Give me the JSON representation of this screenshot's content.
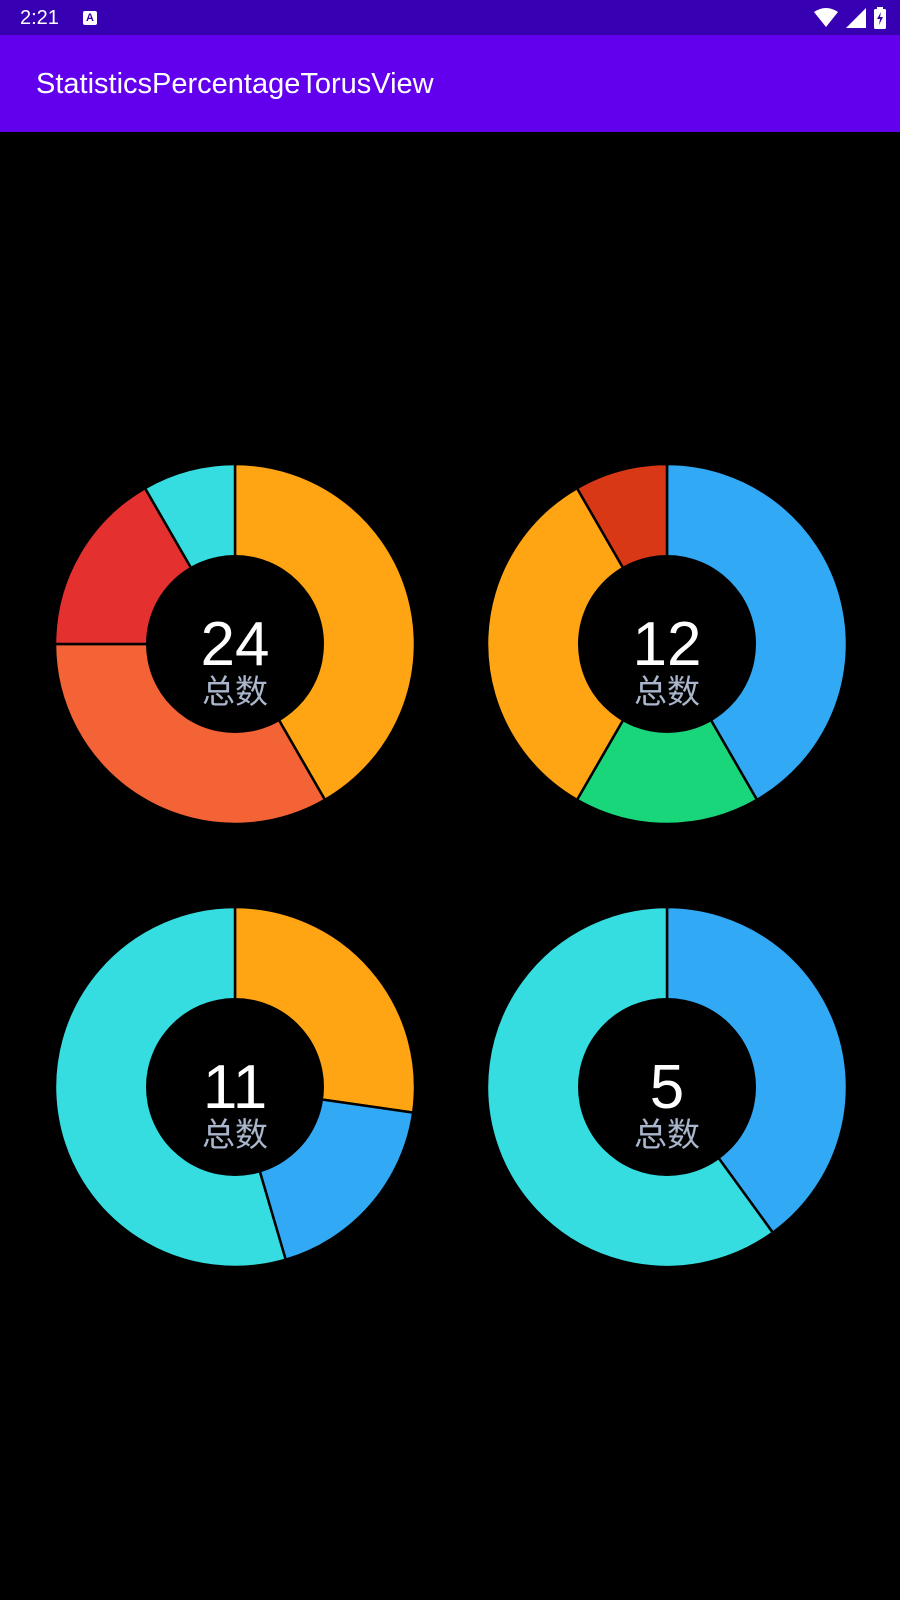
{
  "status_bar": {
    "time": "2:21",
    "notification_icon": "a-text-icon",
    "icons": [
      "wifi-icon",
      "signal-icon",
      "battery-icon"
    ]
  },
  "app_bar": {
    "title": "StatisticsPercentageTorusView",
    "background": "#6200ee"
  },
  "colors": {
    "status_bar": "#3700b3",
    "background": "#000000",
    "center_label": "#a9b6cc",
    "separator": "#000000"
  },
  "chart_data": [
    {
      "type": "pie",
      "total": "24",
      "center_label": "总数",
      "slices": [
        {
          "value": 10,
          "color": "#ffa412"
        },
        {
          "value": 8,
          "color": "#f36335"
        },
        {
          "value": 4,
          "color": "#e4302f"
        },
        {
          "value": 2,
          "color": "#35dde0"
        }
      ]
    },
    {
      "type": "pie",
      "total": "12",
      "center_label": "总数",
      "slices": [
        {
          "value": 5,
          "color": "#31a9f4"
        },
        {
          "value": 2,
          "color": "#19d67a"
        },
        {
          "value": 4,
          "color": "#ffa412"
        },
        {
          "value": 1,
          "color": "#d83816"
        }
      ]
    },
    {
      "type": "pie",
      "total": "11",
      "center_label": "总数",
      "slices": [
        {
          "value": 3,
          "color": "#ffa412"
        },
        {
          "value": 2,
          "color": "#31a9f4"
        },
        {
          "value": 6,
          "color": "#35dde0"
        }
      ]
    },
    {
      "type": "pie",
      "total": "5",
      "center_label": "总数",
      "slices": [
        {
          "value": 2,
          "color": "#31a9f4"
        },
        {
          "value": 3,
          "color": "#35dde0"
        }
      ]
    }
  ]
}
